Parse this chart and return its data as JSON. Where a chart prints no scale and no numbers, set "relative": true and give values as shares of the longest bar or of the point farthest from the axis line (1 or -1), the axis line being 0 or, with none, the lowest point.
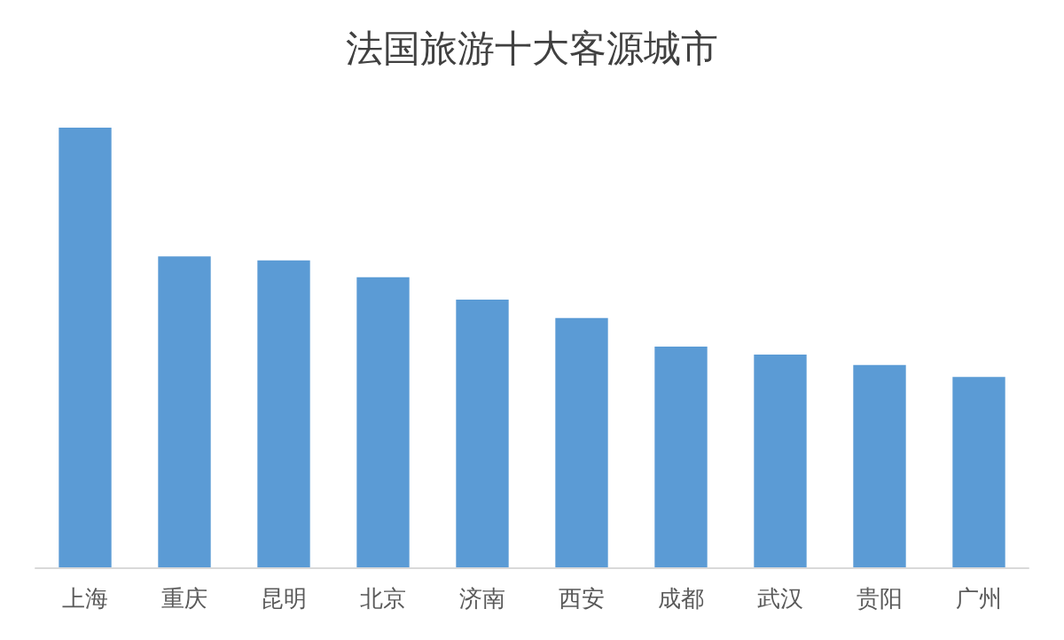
{
  "chart_data": {
    "type": "bar",
    "title": "法国旅游十大客源城市",
    "categories": [
      "上海",
      "重庆",
      "昆明",
      "北京",
      "济南",
      "西安",
      "成都",
      "武汉",
      "贵阳",
      "广州"
    ],
    "values": [
      1,
      0.707,
      0.698,
      0.66,
      0.609,
      0.567,
      0.502,
      0.484,
      0.46,
      0.433
    ],
    "color": "#5b9bd5",
    "relative": true
  }
}
